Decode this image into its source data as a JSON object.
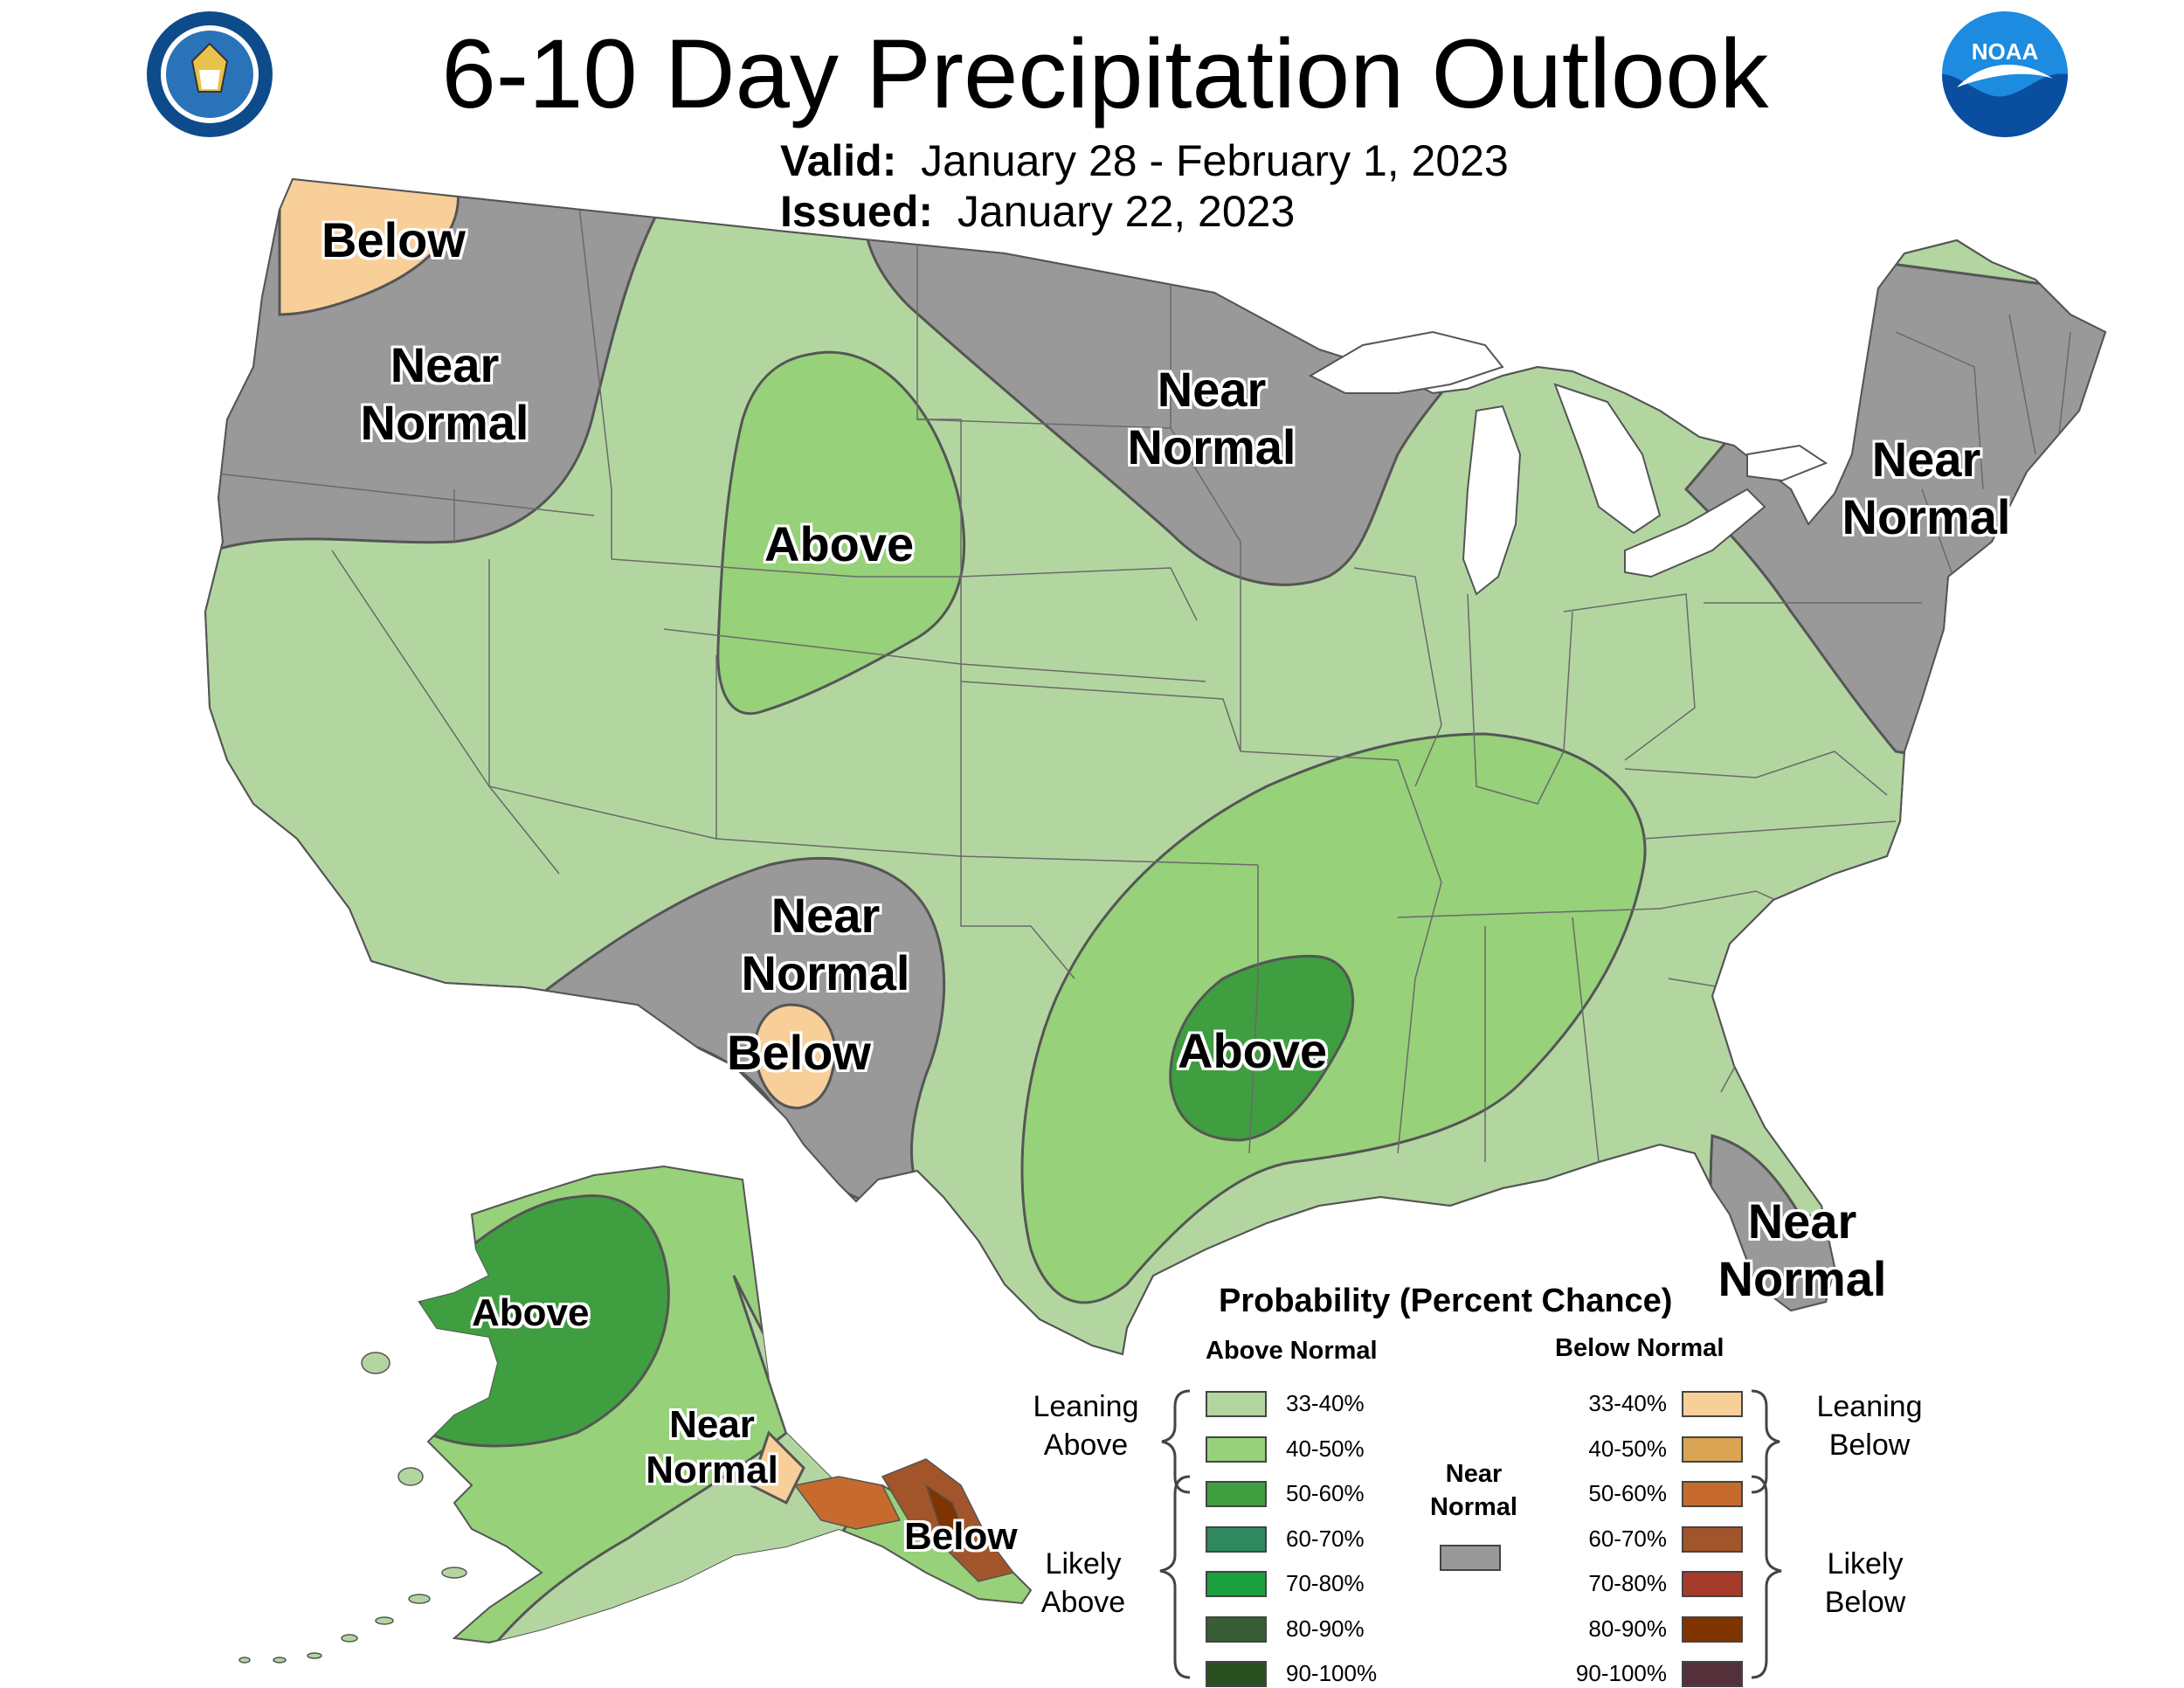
{
  "title": "6-10 Day Precipitation Outlook",
  "valid": {
    "label": "Valid:",
    "value": "January 28 - February 1, 2023"
  },
  "issued": {
    "label": "Issued:",
    "value": "January 22, 2023"
  },
  "logos": {
    "left": "department-of-commerce-seal",
    "right": "noaa-logo"
  },
  "colors": {
    "water": "#ffffff",
    "near_normal": "#999999",
    "above_33_40": "#b3d6a1",
    "above_40_50": "#97d17a",
    "above_50_60": "#3f9e3f",
    "below_33_40": "#f8cf99",
    "boundary": "#555555"
  },
  "regions": {
    "pnw_below": "Below",
    "pnw_near_normal": "Near Normal",
    "rockies_above": "Above",
    "north_central_near_normal": "Near Normal",
    "northeast_near_normal": "Near Normal",
    "southwest_near_normal": "Near Normal",
    "southwest_below": "Below",
    "south_central_above": "Above",
    "florida_near_normal": "Near Normal",
    "alaska_above": "Above",
    "alaska_near_normal": "Near Normal",
    "alaska_below": "Below"
  },
  "legend": {
    "title": "Probability (Percent Chance)",
    "above_header": "Above Normal",
    "below_header": "Below Normal",
    "near_normal": {
      "label": "Near Normal",
      "color": "#999999"
    },
    "leaning_above": "Leaning Above",
    "likely_above": "Likely Above",
    "leaning_below": "Leaning Below",
    "likely_below": "Likely Below",
    "above_bins": [
      {
        "label": "33-40%",
        "color": "#b3d6a1"
      },
      {
        "label": "40-50%",
        "color": "#97d17a"
      },
      {
        "label": "50-60%",
        "color": "#3f9e3f"
      },
      {
        "label": "60-70%",
        "color": "#2e8a5e"
      },
      {
        "label": "70-80%",
        "color": "#1aa03e"
      },
      {
        "label": "80-90%",
        "color": "#385e36"
      },
      {
        "label": "90-100%",
        "color": "#285020"
      }
    ],
    "below_bins": [
      {
        "label": "33-40%",
        "color": "#f8cf99"
      },
      {
        "label": "40-50%",
        "color": "#d9a453"
      },
      {
        "label": "50-60%",
        "color": "#c66b2d"
      },
      {
        "label": "60-70%",
        "color": "#a2552a"
      },
      {
        "label": "70-80%",
        "color": "#a63b2b"
      },
      {
        "label": "80-90%",
        "color": "#7f3400"
      },
      {
        "label": "90-100%",
        "color": "#54303a"
      }
    ]
  }
}
